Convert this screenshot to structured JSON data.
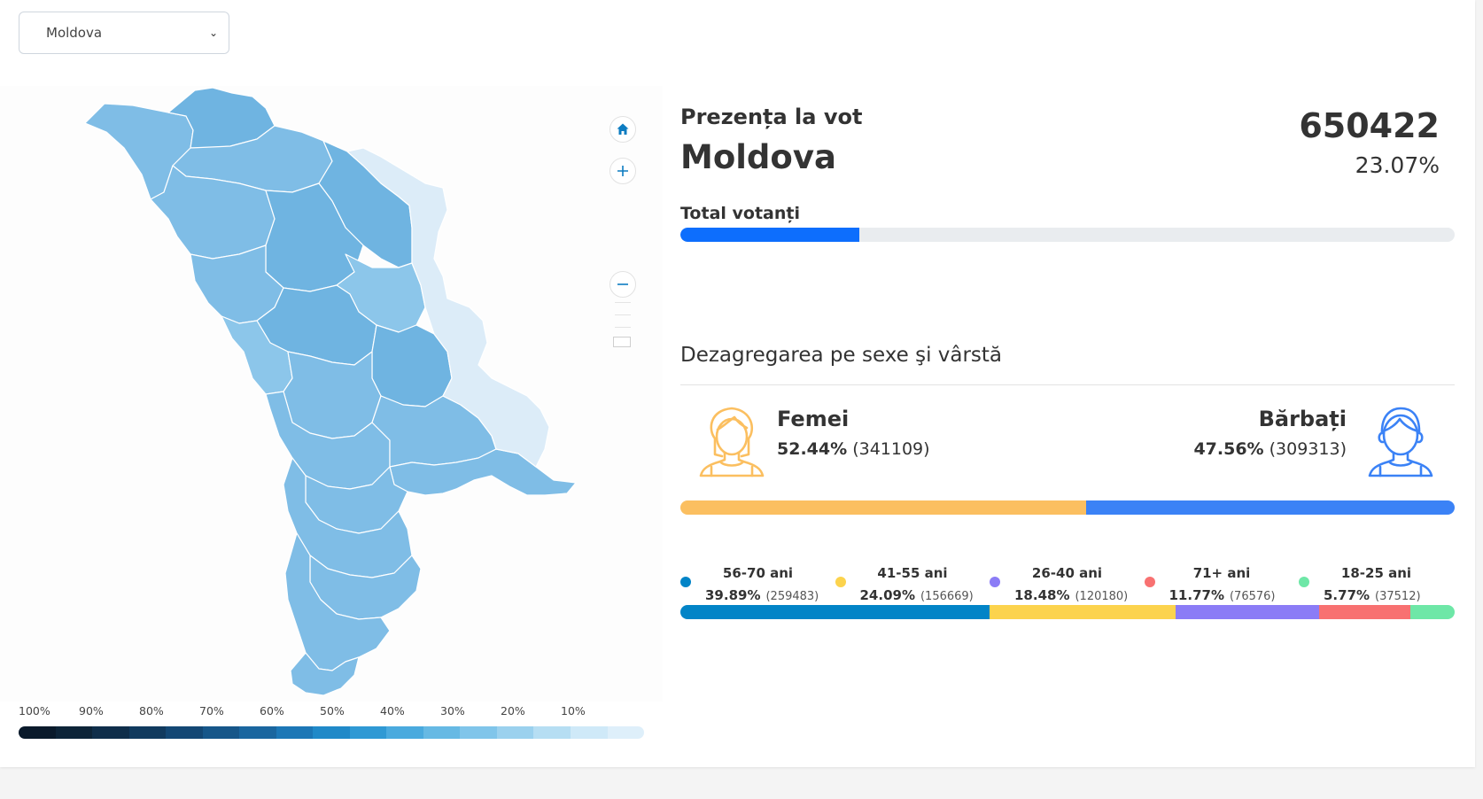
{
  "region_select": {
    "selected": "Moldova"
  },
  "map": {
    "legend_labels": [
      "100%",
      "90%",
      "80%",
      "70%",
      "60%",
      "50%",
      "40%",
      "30%",
      "20%",
      "10%"
    ],
    "legend_colors": [
      "#0a1a2b",
      "#0d2438",
      "#0f2e4a",
      "#113a5e",
      "#134774",
      "#165689",
      "#1a669f",
      "#1c77b6",
      "#2089c8",
      "#2f99d4",
      "#4aaade",
      "#66b9e4",
      "#80c5ea",
      "#9bd1ee",
      "#b6def3",
      "#cfe9f8",
      "#deeffa"
    ],
    "region_fills": [
      "#7fbde6",
      "#6fb4e1",
      "#8cc6ea",
      "#dcecf8"
    ],
    "controls": [
      "home-icon",
      "plus-icon",
      "minus-icon"
    ]
  },
  "turnout": {
    "label": "Prezența la vot",
    "region": "Moldova",
    "total": "650422",
    "percent": "23.07%",
    "percent_value": 23.07,
    "total_label": "Total votanți"
  },
  "breakdown": {
    "title": "Dezagregarea pe sexe şi vârstă",
    "women": {
      "label": "Femei",
      "percent": "52.44%",
      "count": "(341109)",
      "value": 52.44,
      "color": "#fbbf60"
    },
    "men": {
      "label": "Bărbați",
      "percent": "47.56%",
      "count": "(309313)",
      "value": 47.56,
      "color": "#3b82f6"
    },
    "age_groups": [
      {
        "label": "56-70 ani",
        "percent": "39.89%",
        "count": "(259483)",
        "value": 39.89,
        "color": "#0284c7"
      },
      {
        "label": "41-55 ani",
        "percent": "24.09%",
        "count": "(156669)",
        "value": 24.09,
        "color": "#fcd34d"
      },
      {
        "label": "26-40 ani",
        "percent": "18.48%",
        "count": "(120180)",
        "value": 18.48,
        "color": "#8b7cf6"
      },
      {
        "label": "71+ ani",
        "percent": "11.77%",
        "count": "(76576)",
        "value": 11.77,
        "color": "#f87171"
      },
      {
        "label": "18-25 ani",
        "percent": "5.77%",
        "count": "(37512)",
        "value": 5.77,
        "color": "#6ee7a7"
      }
    ]
  }
}
